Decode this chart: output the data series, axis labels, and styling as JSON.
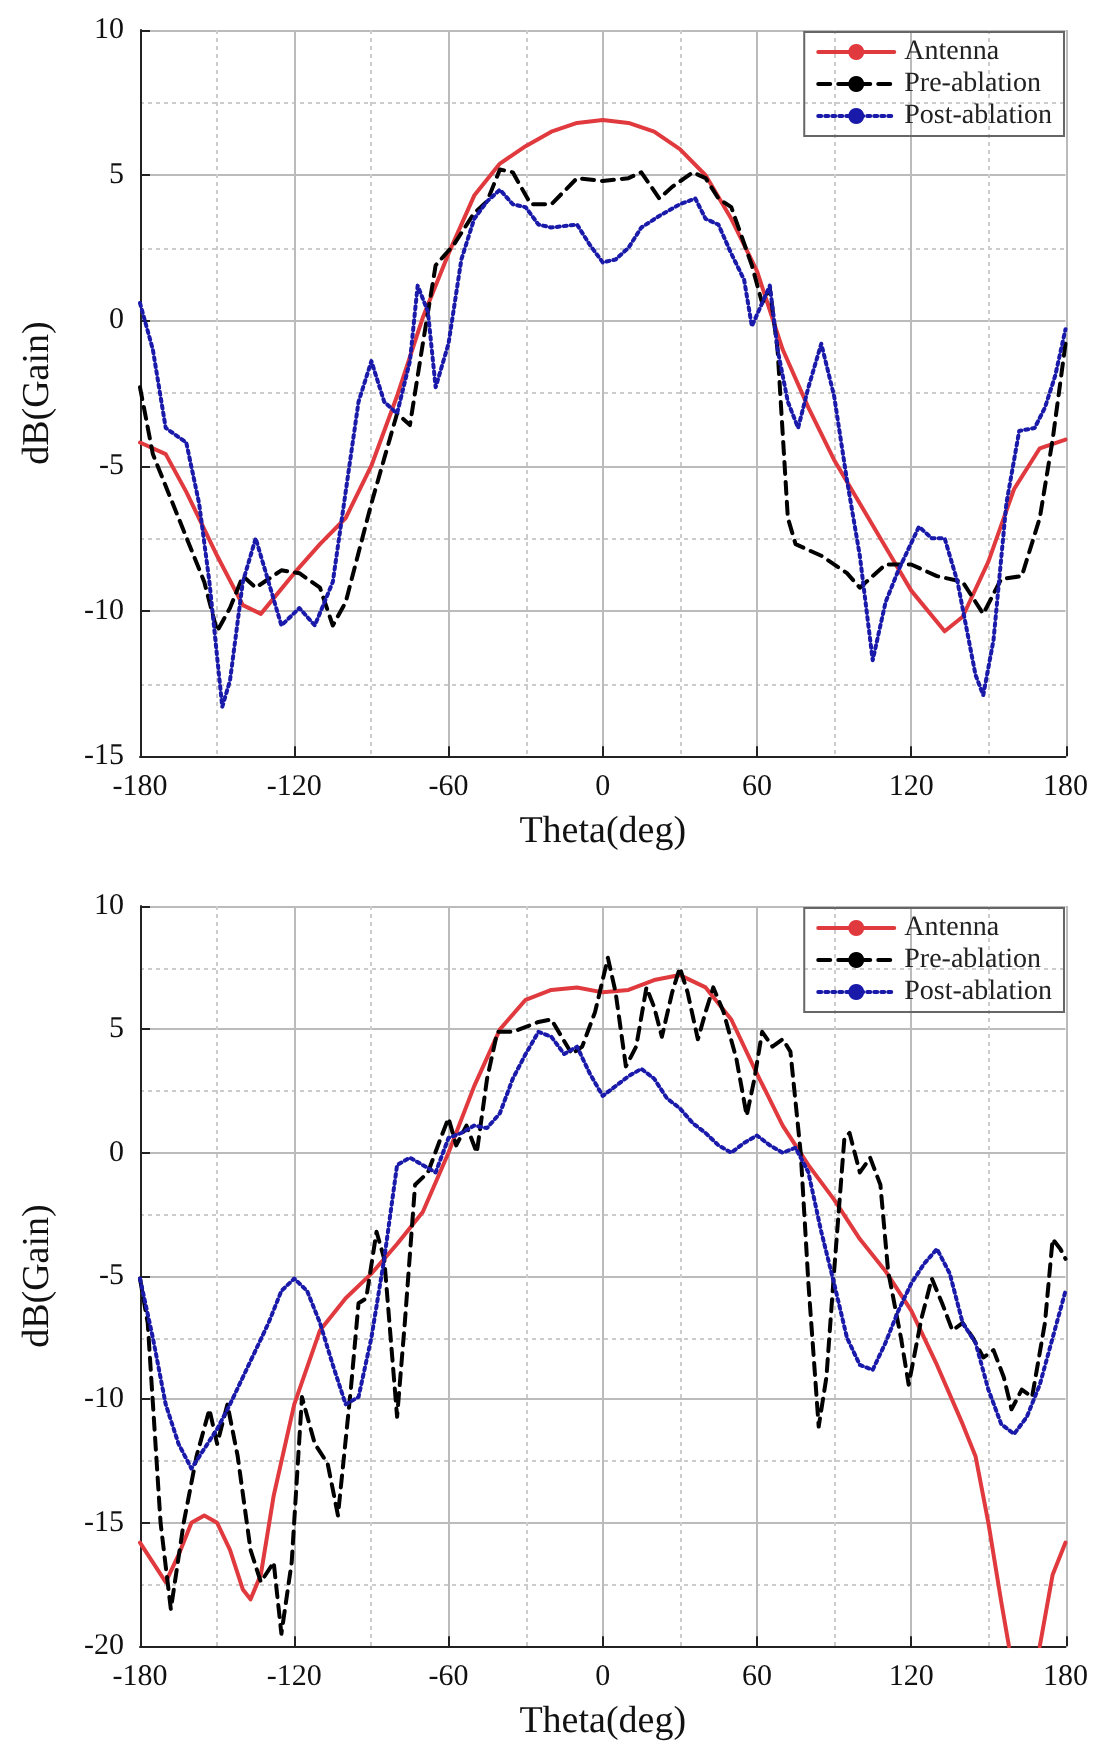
{
  "chart_data": [
    {
      "type": "line",
      "xlabel": "Theta(deg)",
      "ylabel": "dB(Gain)",
      "xlim": [
        -180,
        180
      ],
      "xticks": [
        -180,
        -120,
        -60,
        0,
        60,
        120,
        180
      ],
      "ylim": [
        -15,
        10
      ],
      "yticks": [
        -15,
        -10,
        -5,
        0,
        5,
        10
      ],
      "grid": true,
      "legend": "top right",
      "marker": "none",
      "series": [
        {
          "name": "Antenna",
          "color": "#e0393e",
          "line_style": "solid",
          "x": [
            -180,
            -170,
            -162,
            -150,
            -140,
            -133,
            -120,
            -110,
            -100,
            -90,
            -80,
            -70,
            -60,
            -50,
            -40,
            -30,
            -20,
            -10,
            0,
            10,
            20,
            30,
            40,
            50,
            60,
            70,
            80,
            90,
            100,
            112,
            120,
            133,
            140,
            150,
            160,
            170,
            180
          ],
          "values": [
            -4.2,
            -4.6,
            -5.9,
            -8.1,
            -9.8,
            -10.1,
            -8.7,
            -7.7,
            -6.8,
            -5,
            -2.6,
            0.1,
            2.3,
            4.3,
            5.4,
            6,
            6.5,
            6.8,
            6.9,
            6.8,
            6.5,
            5.9,
            5,
            3.5,
            1.7,
            -1,
            -3,
            -4.8,
            -6.3,
            -8.1,
            -9.3,
            -10.7,
            -10.2,
            -8.3,
            -5.8,
            -4.4,
            -4.1
          ]
        },
        {
          "name": "Pre-ablation",
          "color": "#000000",
          "line_style": "dashed",
          "x": [
            -180,
            -175,
            -165,
            -155,
            -150,
            -145,
            -140,
            -135,
            -125,
            -118,
            -110,
            -105,
            -100,
            -90,
            -80,
            -75,
            -70,
            -65,
            -58,
            -50,
            -45,
            -40,
            -35,
            -28,
            -20,
            -10,
            0,
            10,
            15,
            22,
            27,
            35,
            40,
            45,
            50,
            58,
            62,
            65,
            68,
            72,
            75,
            85,
            95,
            100,
            110,
            120,
            130,
            140,
            148,
            155,
            163,
            170,
            175,
            180
          ],
          "values": [
            -2.3,
            -4.6,
            -6.8,
            -9,
            -10.7,
            -9.9,
            -8.8,
            -9.2,
            -8.6,
            -8.7,
            -9.2,
            -10.5,
            -9.7,
            -6.3,
            -3.2,
            -3.6,
            -0.8,
            1.9,
            2.6,
            3.7,
            4.1,
            5.2,
            5.1,
            4,
            4,
            4.9,
            4.8,
            4.9,
            5.1,
            4.2,
            4.6,
            5.1,
            4.9,
            4.2,
            3.9,
            1.9,
            0.6,
            1.1,
            -1,
            -6.8,
            -7.7,
            -8.1,
            -8.7,
            -9.2,
            -8.4,
            -8.4,
            -8.8,
            -9,
            -10.1,
            -8.9,
            -8.8,
            -6.8,
            -4.1,
            -0.8
          ]
        },
        {
          "name": "Post-ablation",
          "color": "#1a1aaa",
          "line_style": "dotted",
          "x": [
            -180,
            -175,
            -170,
            -162,
            -157,
            -153,
            -148,
            -145,
            -140,
            -135,
            -130,
            -125,
            -118,
            -112,
            -105,
            -100,
            -95,
            -90,
            -85,
            -80,
            -75,
            -72,
            -68,
            -65,
            -60,
            -55,
            -50,
            -45,
            -40,
            -35,
            -30,
            -25,
            -20,
            -10,
            -5,
            0,
            5,
            10,
            15,
            22,
            30,
            36,
            40,
            45,
            50,
            55,
            58,
            62,
            65,
            68,
            72,
            76,
            80,
            85,
            90,
            95,
            100,
            105,
            110,
            115,
            123,
            128,
            133,
            138,
            145,
            148,
            152,
            157,
            162,
            168,
            172,
            176,
            180
          ],
          "values": [
            0.6,
            -1,
            -3.7,
            -4.2,
            -6.3,
            -9,
            -13.3,
            -12.4,
            -9,
            -7.5,
            -9,
            -10.5,
            -9.9,
            -10.5,
            -9,
            -5.9,
            -2.8,
            -1.4,
            -2.8,
            -3.2,
            -1.4,
            1.2,
            0.3,
            -2.3,
            -0.8,
            2.1,
            3.5,
            4.1,
            4.5,
            4,
            3.9,
            3.3,
            3.2,
            3.3,
            2.6,
            2,
            2.1,
            2.5,
            3.2,
            3.6,
            4,
            4.2,
            3.5,
            3.3,
            2.3,
            1.4,
            -0.2,
            0.6,
            1.2,
            -1,
            -2.8,
            -3.7,
            -2.3,
            -0.8,
            -2.6,
            -5.5,
            -8.1,
            -11.7,
            -9.7,
            -8.6,
            -7.1,
            -7.5,
            -7.5,
            -9,
            -12.2,
            -12.9,
            -11,
            -6.3,
            -3.8,
            -3.7,
            -3,
            -1.9,
            -0.3
          ]
        }
      ]
    },
    {
      "type": "line",
      "xlabel": "Theta(deg)",
      "ylabel": "dB(Gain)",
      "xlim": [
        -180,
        180
      ],
      "xticks": [
        -180,
        -120,
        -60,
        0,
        60,
        120,
        180
      ],
      "ylim": [
        -20,
        10
      ],
      "yticks": [
        -20,
        -15,
        -10,
        -5,
        0,
        5,
        10
      ],
      "grid": true,
      "legend": "top right",
      "marker": "none",
      "series": [
        {
          "name": "Antenna",
          "color": "#e0393e",
          "line_style": "solid",
          "x": [
            -180,
            -175,
            -170,
            -165,
            -160,
            -155,
            -150,
            -145,
            -140,
            -137,
            -133,
            -128,
            -120,
            -110,
            -100,
            -90,
            -80,
            -70,
            -60,
            -50,
            -40,
            -30,
            -20,
            -10,
            0,
            10,
            20,
            30,
            40,
            50,
            60,
            70,
            80,
            90,
            100,
            110,
            120,
            130,
            140,
            145,
            150,
            155,
            158,
            164,
            170,
            175,
            180
          ],
          "values": [
            -15.8,
            -16.6,
            -17.4,
            -16.3,
            -15,
            -14.7,
            -15,
            -16.1,
            -17.7,
            -18.1,
            -17.1,
            -13.9,
            -10.2,
            -7.2,
            -5.9,
            -4.9,
            -3.7,
            -2.4,
            0,
            2.7,
            5,
            6.2,
            6.6,
            6.7,
            6.5,
            6.6,
            7,
            7.2,
            6.7,
            5.4,
            3.2,
            1.1,
            -0.5,
            -1.9,
            -3.5,
            -4.8,
            -6.4,
            -8.6,
            -11,
            -12.3,
            -15,
            -18.2,
            -20,
            null,
            -20,
            -17.1,
            -15.8
          ]
        },
        {
          "name": "Pre-ablation",
          "color": "#000000",
          "line_style": "dashed",
          "x": [
            -180,
            -177,
            -172,
            -168,
            -163,
            -158,
            -153,
            -150,
            -146,
            -142,
            -137,
            -133,
            -128,
            -125,
            -121,
            -117,
            -112,
            -107,
            -103,
            -98,
            -95,
            -92,
            -88,
            -85,
            -80,
            -77,
            -73,
            -68,
            -63,
            -60,
            -57,
            -53,
            -49,
            -45,
            -41,
            -35,
            -25,
            -20,
            -12,
            -8,
            -3,
            2,
            5,
            9,
            13,
            17,
            20,
            23,
            27,
            30,
            33,
            37,
            40,
            43,
            47,
            52,
            56,
            59,
            62,
            66,
            70,
            73,
            77,
            80,
            84,
            87,
            90,
            94,
            96,
            100,
            104,
            108,
            111,
            116,
            119,
            124,
            128,
            132,
            136,
            140,
            144,
            148,
            152,
            156,
            159,
            163,
            167,
            172,
            175,
            178,
            180
          ],
          "values": [
            -5.1,
            -6.9,
            -15,
            -18.5,
            -15,
            -12.3,
            -10.4,
            -11.8,
            -10.2,
            -12.3,
            -16.1,
            -17.4,
            -16.6,
            -19.5,
            -16.6,
            -9.9,
            -11.8,
            -12.6,
            -14.7,
            -9.6,
            -6.1,
            -5.9,
            -3.2,
            -4.3,
            -10.7,
            -6.9,
            -1.3,
            -0.8,
            0.6,
            1.4,
            0.3,
            1.1,
            0,
            3,
            4.9,
            4.9,
            5.3,
            5.4,
            4,
            4.3,
            5.7,
            7.9,
            6.5,
            3.5,
            4.3,
            6.7,
            5.9,
            4.7,
            6.5,
            7.5,
            6.5,
            4.6,
            5.7,
            6.7,
            5.7,
            3.8,
            1.5,
            3,
            4.9,
            4.3,
            4.6,
            4.1,
            0,
            -5.3,
            -11.1,
            -9.1,
            -4.8,
            0.6,
            0.8,
            -0.8,
            -0.2,
            -1.3,
            -4.8,
            -7.5,
            -9.4,
            -6.7,
            -5.1,
            -6.1,
            -7.2,
            -6.9,
            -7.5,
            -8.3,
            -8,
            -9.1,
            -10.4,
            -9.6,
            -9.9,
            -6.9,
            -3.5,
            -3.9,
            -4.3
          ]
        },
        {
          "name": "Post-ablation",
          "color": "#1a1aaa",
          "line_style": "dotted",
          "x": [
            -180,
            -175,
            -170,
            -165,
            -160,
            -155,
            -150,
            -145,
            -140,
            -135,
            -130,
            -125,
            -120,
            -115,
            -110,
            -105,
            -100,
            -95,
            -90,
            -85,
            -80,
            -75,
            -70,
            -65,
            -60,
            -55,
            -50,
            -45,
            -40,
            -35,
            -30,
            -25,
            -20,
            -15,
            -10,
            -5,
            0,
            5,
            10,
            15,
            20,
            25,
            30,
            35,
            40,
            45,
            50,
            55,
            60,
            65,
            70,
            75,
            80,
            85,
            90,
            95,
            100,
            105,
            110,
            115,
            120,
            125,
            130,
            135,
            140,
            145,
            150,
            155,
            160,
            165,
            170,
            175,
            180
          ],
          "values": [
            -5.1,
            -7.5,
            -10.2,
            -11.8,
            -12.8,
            -12,
            -11.2,
            -10.2,
            -9.1,
            -8,
            -6.9,
            -5.6,
            -5.1,
            -5.6,
            -6.9,
            -8.6,
            -10.2,
            -9.9,
            -7.5,
            -4.3,
            -0.5,
            -0.2,
            -0.5,
            -0.8,
            0.6,
            0.8,
            1.1,
            1,
            1.6,
            3,
            4,
            4.9,
            4.7,
            4,
            4.3,
            3.2,
            2.3,
            2.7,
            3.1,
            3.4,
            3,
            2.2,
            1.8,
            1.2,
            0.8,
            0.3,
            0,
            0.4,
            0.7,
            0.3,
            0,
            0.2,
            -0.8,
            -3.2,
            -5.3,
            -7.5,
            -8.6,
            -8.8,
            -7.7,
            -6.4,
            -5.3,
            -4.5,
            -3.9,
            -4.9,
            -6.9,
            -7.7,
            -9.6,
            -11,
            -11.4,
            -10.7,
            -9.4,
            -7.5,
            -5.6
          ]
        }
      ]
    }
  ]
}
